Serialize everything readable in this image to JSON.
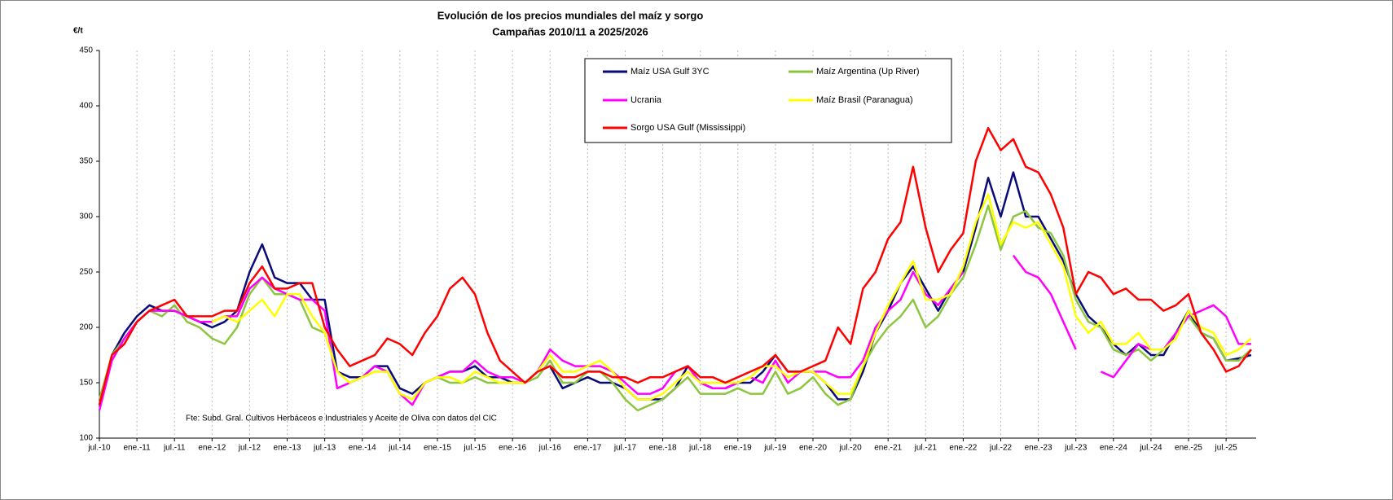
{
  "chart_data": {
    "type": "line",
    "title": "Evolución de los precios mundiales del maíz y sorgo",
    "subtitle": "Campañas 2010/11 a 2025/2026",
    "y_label": "€/t",
    "annotation": "Fte: Subd. Gral. Cultivos Herbáceos e Industriales y Aceite de Oliva con datos del CIC",
    "categories": [
      "jul.-10",
      null,
      null,
      "ene.-11",
      null,
      null,
      "jul.-11",
      null,
      null,
      "ene.-12",
      null,
      null,
      "jul.-12",
      null,
      null,
      "ene.-13",
      null,
      null,
      "jul.-13",
      null,
      null,
      "ene.-14",
      null,
      null,
      "jul.-14",
      null,
      null,
      "ene.-15",
      null,
      null,
      "jul.-15",
      null,
      null,
      "ene.-16",
      null,
      null,
      "jul.-16",
      null,
      null,
      "ene.-17",
      null,
      null,
      "jul.-17",
      null,
      null,
      "ene.-18",
      null,
      null,
      "jul.-18",
      null,
      null,
      "ene.-19",
      null,
      null,
      "jul.-19",
      null,
      null,
      "ene.-20",
      null,
      null,
      "jul.-20",
      null,
      null,
      "ene.-21",
      null,
      null,
      "jul.-21",
      null,
      null,
      "ene.-22",
      null,
      null,
      "jul.-22",
      null,
      null,
      "ene.-23",
      null,
      null,
      "jul.-23",
      null,
      null,
      "ene.-24",
      null,
      null,
      "jul.-24",
      null,
      null,
      "ene.-25",
      null,
      null,
      "jul.-25",
      null,
      null
    ],
    "series": [
      {
        "name": "Maíz USA Gulf 3YC",
        "color": "#0a0a78",
        "values": [
          130,
          175,
          195,
          210,
          220,
          215,
          215,
          210,
          205,
          200,
          205,
          215,
          250,
          275,
          245,
          240,
          240,
          225,
          225,
          160,
          155,
          155,
          165,
          165,
          145,
          140,
          150,
          155,
          160,
          160,
          165,
          155,
          155,
          150,
          150,
          160,
          165,
          145,
          150,
          155,
          150,
          150,
          145,
          135,
          135,
          135,
          145,
          165,
          150,
          145,
          145,
          150,
          150,
          160,
          175,
          160,
          160,
          160,
          150,
          135,
          135,
          160,
          195,
          215,
          240,
          255,
          235,
          215,
          235,
          250,
          290,
          335,
          300,
          340,
          300,
          300,
          280,
          260,
          230,
          210,
          200,
          185,
          175,
          185,
          175,
          175,
          195,
          215,
          195,
          190,
          170,
          172,
          175
        ]
      },
      {
        "name": "Maíz Argentina (Up River)",
        "color": "#8cc63f",
        "values": [
          135,
          175,
          190,
          205,
          215,
          210,
          220,
          205,
          200,
          190,
          185,
          200,
          230,
          245,
          230,
          230,
          225,
          200,
          195,
          160,
          150,
          155,
          160,
          160,
          140,
          135,
          150,
          155,
          150,
          150,
          155,
          150,
          150,
          150,
          150,
          155,
          170,
          150,
          150,
          160,
          160,
          150,
          135,
          125,
          130,
          135,
          145,
          155,
          140,
          140,
          140,
          145,
          140,
          140,
          160,
          140,
          145,
          155,
          140,
          130,
          135,
          165,
          185,
          200,
          210,
          225,
          200,
          210,
          230,
          245,
          275,
          310,
          270,
          300,
          305,
          290,
          285,
          265,
          225,
          205,
          200,
          180,
          175,
          180,
          170,
          180,
          195,
          210,
          195,
          190,
          170,
          170,
          180
        ]
      },
      {
        "name": "Ucrania",
        "color": "#ff00ff",
        "values": [
          125,
          170,
          190,
          205,
          215,
          215,
          215,
          210,
          205,
          205,
          210,
          210,
          235,
          245,
          235,
          230,
          225,
          225,
          215,
          145,
          150,
          155,
          165,
          160,
          140,
          130,
          150,
          155,
          160,
          160,
          170,
          160,
          155,
          155,
          150,
          160,
          180,
          170,
          165,
          165,
          165,
          160,
          150,
          140,
          140,
          145,
          160,
          165,
          150,
          145,
          145,
          150,
          155,
          150,
          170,
          150,
          160,
          160,
          160,
          155,
          155,
          170,
          200,
          215,
          225,
          250,
          230,
          220,
          235,
          250,
          null,
          null,
          null,
          265,
          250,
          245,
          230,
          205,
          180,
          null,
          160,
          155,
          170,
          185,
          180,
          180,
          195,
          210,
          215,
          220,
          210,
          185,
          185
        ]
      },
      {
        "name": "Maíz Brasil (Paranagua)",
        "color": "#ffff00",
        "values": [
          null,
          null,
          null,
          null,
          null,
          null,
          null,
          null,
          null,
          205,
          210,
          205,
          215,
          225,
          210,
          230,
          230,
          210,
          195,
          160,
          150,
          155,
          160,
          160,
          140,
          135,
          150,
          155,
          155,
          150,
          160,
          155,
          150,
          150,
          150,
          160,
          175,
          160,
          160,
          165,
          170,
          160,
          145,
          135,
          135,
          140,
          150,
          160,
          150,
          150,
          150,
          150,
          155,
          165,
          165,
          155,
          160,
          160,
          150,
          140,
          140,
          165,
          195,
          220,
          240,
          260,
          225,
          225,
          230,
          255,
          295,
          320,
          275,
          295,
          290,
          295,
          275,
          255,
          210,
          195,
          205,
          185,
          185,
          195,
          180,
          180,
          190,
          215,
          200,
          195,
          175,
          180,
          190
        ]
      },
      {
        "name": "Sorgo USA Gulf (Mississippi)",
        "color": "#ff0000",
        "values": [
          130,
          175,
          185,
          205,
          215,
          220,
          225,
          210,
          210,
          210,
          215,
          215,
          240,
          255,
          235,
          235,
          240,
          240,
          200,
          180,
          165,
          170,
          175,
          190,
          185,
          175,
          195,
          210,
          235,
          245,
          230,
          195,
          170,
          160,
          150,
          160,
          165,
          155,
          155,
          160,
          160,
          155,
          155,
          150,
          155,
          155,
          160,
          165,
          155,
          155,
          150,
          155,
          160,
          165,
          175,
          160,
          160,
          165,
          170,
          200,
          185,
          235,
          250,
          280,
          295,
          345,
          290,
          250,
          270,
          285,
          350,
          380,
          360,
          370,
          345,
          340,
          320,
          290,
          230,
          250,
          245,
          230,
          235,
          225,
          225,
          215,
          220,
          230,
          195,
          180,
          160,
          165,
          180
        ]
      }
    ],
    "ylim": [
      100,
      450
    ],
    "yticks": [
      100,
      150,
      200,
      250,
      300,
      350,
      400,
      450
    ],
    "grid": "x"
  }
}
